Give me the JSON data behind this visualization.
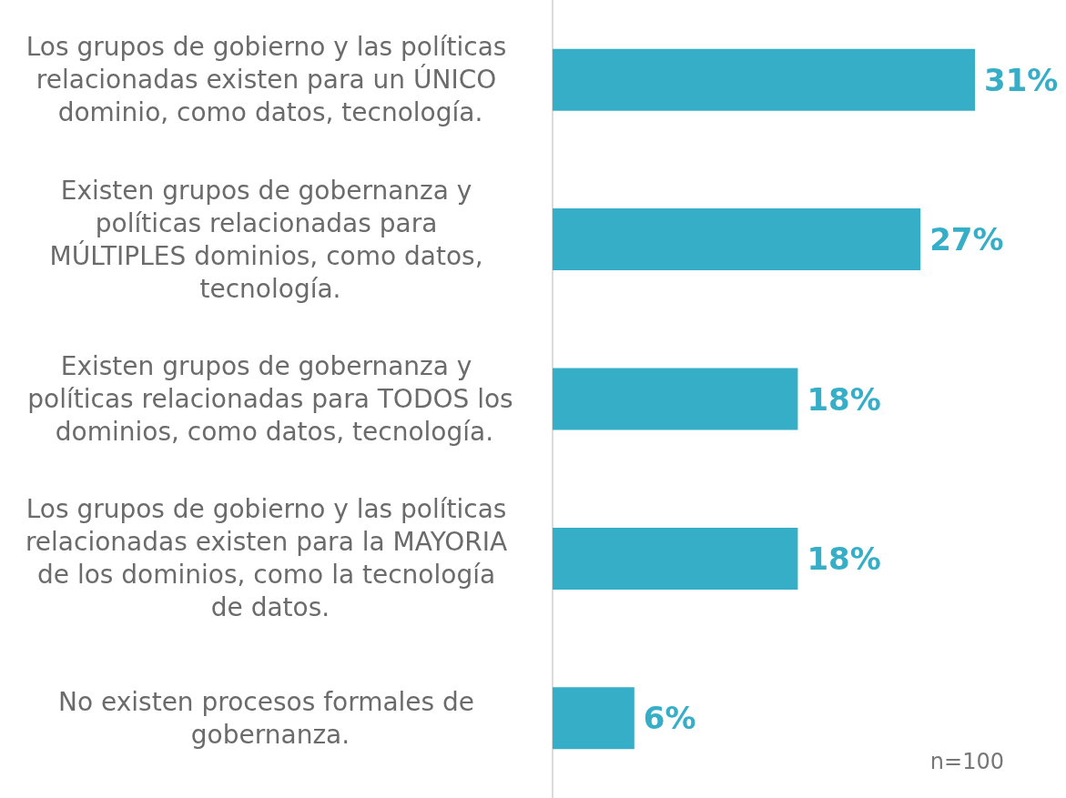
{
  "chart_data": {
    "type": "bar",
    "orientation": "horizontal",
    "categories": [
      "Los grupos de gobierno y las políticas relacionadas existen para un ÚNICO dominio, como datos, tecnología.",
      "Existen grupos de gobernanza y políticas relacionadas para MÚLTIPLES dominios, como datos, tecnología.",
      "Existen grupos de gobernanza y políticas relacionadas para TODOS los dominios, como datos, tecnología.",
      "Los grupos de gobierno y las políticas relacionadas existen para la MAYORIA de los dominios, como la tecnología de datos.",
      "No existen procesos formales de gobernanza."
    ],
    "values": [
      31,
      27,
      18,
      18,
      6
    ],
    "value_labels": [
      "31%",
      "27%",
      "18%",
      "18%",
      "6%"
    ],
    "color": "#36aec8",
    "tick_labels": "y",
    "annotations": [
      "n=100"
    ]
  }
}
